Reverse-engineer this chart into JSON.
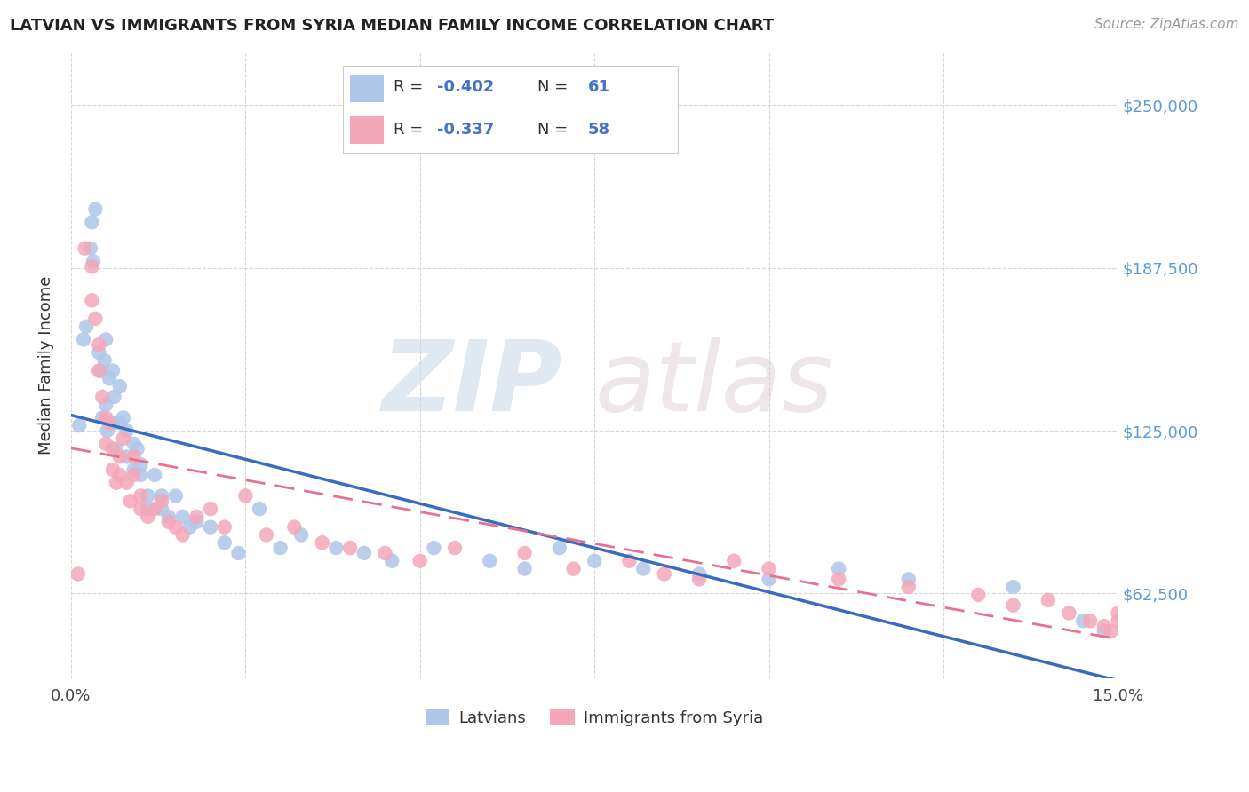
{
  "title": "LATVIAN VS IMMIGRANTS FROM SYRIA MEDIAN FAMILY INCOME CORRELATION CHART",
  "source": "Source: ZipAtlas.com",
  "ylabel": "Median Family Income",
  "ytick_labels": [
    "$62,500",
    "$125,000",
    "$187,500",
    "$250,000"
  ],
  "ytick_values": [
    62500,
    125000,
    187500,
    250000
  ],
  "ymin": 30000,
  "ymax": 270000,
  "xmin": 0.0,
  "xmax": 0.15,
  "label1": "Latvians",
  "label2": "Immigrants from Syria",
  "color1": "#aec6e8",
  "color2": "#f4a7b9",
  "line_color1": "#3a6bbf",
  "line_color2": "#e87090",
  "watermark_zip": "ZIP",
  "watermark_atlas": "atlas",
  "latvians_x": [
    0.0012,
    0.0018,
    0.0022,
    0.0028,
    0.003,
    0.0032,
    0.0035,
    0.004,
    0.0042,
    0.0045,
    0.0048,
    0.005,
    0.005,
    0.0052,
    0.0055,
    0.006,
    0.006,
    0.0062,
    0.0065,
    0.007,
    0.007,
    0.0075,
    0.008,
    0.008,
    0.009,
    0.009,
    0.0095,
    0.01,
    0.01,
    0.011,
    0.011,
    0.012,
    0.013,
    0.013,
    0.014,
    0.015,
    0.016,
    0.017,
    0.018,
    0.02,
    0.022,
    0.024,
    0.027,
    0.03,
    0.033,
    0.038,
    0.042,
    0.046,
    0.052,
    0.06,
    0.065,
    0.07,
    0.075,
    0.082,
    0.09,
    0.1,
    0.11,
    0.12,
    0.135,
    0.145,
    0.148
  ],
  "latvians_y": [
    127000,
    160000,
    165000,
    195000,
    205000,
    190000,
    210000,
    155000,
    148000,
    130000,
    152000,
    160000,
    135000,
    125000,
    145000,
    128000,
    148000,
    138000,
    118000,
    128000,
    142000,
    130000,
    125000,
    115000,
    110000,
    120000,
    118000,
    108000,
    112000,
    100000,
    95000,
    108000,
    100000,
    95000,
    92000,
    100000,
    92000,
    88000,
    90000,
    88000,
    82000,
    78000,
    95000,
    80000,
    85000,
    80000,
    78000,
    75000,
    80000,
    75000,
    72000,
    80000,
    75000,
    72000,
    70000,
    68000,
    72000,
    68000,
    65000,
    52000,
    48000
  ],
  "syria_x": [
    0.001,
    0.002,
    0.003,
    0.003,
    0.0035,
    0.004,
    0.004,
    0.0045,
    0.005,
    0.005,
    0.0055,
    0.006,
    0.006,
    0.0065,
    0.007,
    0.007,
    0.0075,
    0.008,
    0.0085,
    0.009,
    0.009,
    0.01,
    0.01,
    0.011,
    0.012,
    0.013,
    0.014,
    0.015,
    0.016,
    0.018,
    0.02,
    0.022,
    0.025,
    0.028,
    0.032,
    0.036,
    0.04,
    0.045,
    0.05,
    0.055,
    0.065,
    0.072,
    0.08,
    0.085,
    0.09,
    0.095,
    0.1,
    0.11,
    0.12,
    0.13,
    0.135,
    0.14,
    0.143,
    0.146,
    0.148,
    0.149,
    0.15,
    0.15
  ],
  "syria_y": [
    70000,
    195000,
    188000,
    175000,
    168000,
    158000,
    148000,
    138000,
    130000,
    120000,
    128000,
    118000,
    110000,
    105000,
    115000,
    108000,
    122000,
    105000,
    98000,
    108000,
    115000,
    100000,
    95000,
    92000,
    95000,
    98000,
    90000,
    88000,
    85000,
    92000,
    95000,
    88000,
    100000,
    85000,
    88000,
    82000,
    80000,
    78000,
    75000,
    80000,
    78000,
    72000,
    75000,
    70000,
    68000,
    75000,
    72000,
    68000,
    65000,
    62000,
    58000,
    60000,
    55000,
    52000,
    50000,
    48000,
    55000,
    52000
  ]
}
